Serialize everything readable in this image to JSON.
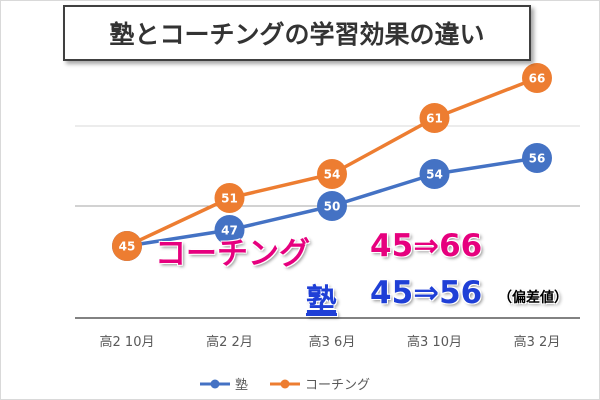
{
  "colors": {
    "juku": "#4472c4",
    "coaching": "#ed7d31",
    "annotation_coaching": "#e6007e",
    "annotation_juku": "#1f3fd6"
  },
  "annotations": {
    "coaching_name": "コーチング",
    "coaching_value": "45⇒66",
    "juku_name": "塾",
    "juku_value": "45⇒56",
    "note": "（偏差値）"
  },
  "chart_data": {
    "type": "line",
    "title": "塾とコーチングの学習効果の違い",
    "categories": [
      "高2 10月",
      "高2 2月",
      "高3 6月",
      "高3 10月",
      "高3 2月"
    ],
    "series": [
      {
        "name": "塾",
        "values": [
          45,
          47,
          50,
          54,
          56
        ]
      },
      {
        "name": "コーチング",
        "values": [
          45,
          51,
          54,
          61,
          66
        ]
      }
    ],
    "ylim": [
      30,
      75
    ],
    "legend": "bottom",
    "grid": "partial"
  }
}
